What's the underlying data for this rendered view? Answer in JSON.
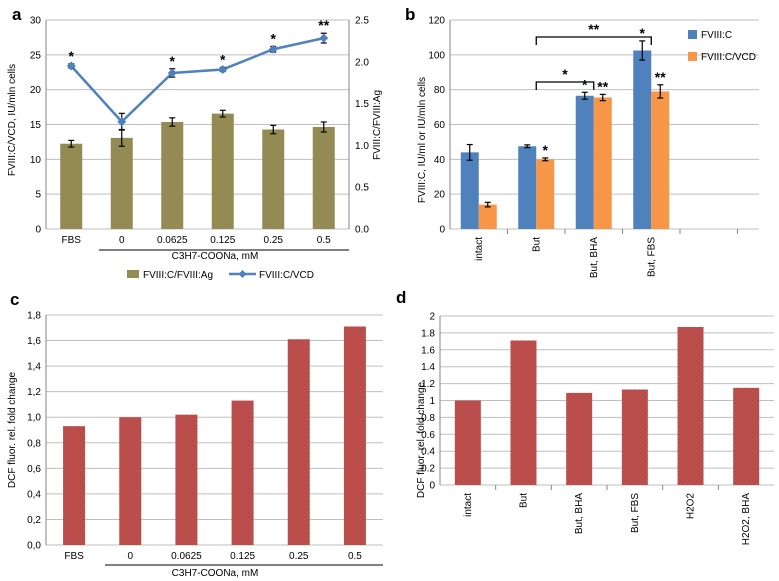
{
  "chart_data": [
    {
      "id": "a",
      "type": "bar+line",
      "panel_label": "a",
      "categories": [
        "FBS",
        "0",
        "0.0625",
        "0.125",
        "0.25",
        "0.5"
      ],
      "group_label": "C3H7-COONa, mM",
      "ylabel_left": "FVIII:C/VCD, IU/mln cells",
      "ylabel_right": "FVIII:C/FVIII:Ag",
      "ylim_left": [
        0,
        30
      ],
      "yticks_left": [
        "0",
        "5",
        "10",
        "15",
        "20",
        "25",
        "30"
      ],
      "ylim_right": [
        0,
        2.5
      ],
      "yticks_right": [
        "0.0",
        "0.5",
        "1.0",
        "1.5",
        "2.0",
        "2.5"
      ],
      "series": [
        {
          "name": "FVIII:C/FVIII:Ag",
          "kind": "bar",
          "axis": "right",
          "color": "#948a54",
          "values": [
            1.02,
            1.09,
            1.28,
            1.38,
            1.19,
            1.22
          ],
          "errors": [
            0.04,
            0.1,
            0.05,
            0.04,
            0.05,
            0.06
          ]
        },
        {
          "name": "FVIII:C/VCD",
          "kind": "line",
          "axis": "left",
          "color": "#4f81bd",
          "values": [
            23.4,
            15.4,
            22.4,
            22.9,
            25.8,
            27.4
          ],
          "errors": [
            0.3,
            1.2,
            0.6,
            0.3,
            0.4,
            0.7
          ],
          "annotations": [
            "*",
            "",
            "*",
            "*",
            "*",
            "**"
          ]
        }
      ]
    },
    {
      "id": "b",
      "type": "bar",
      "panel_label": "b",
      "categories": [
        "intact",
        "But",
        "But, BHA",
        "But, FBS"
      ],
      "ylabel": "FVIII:C, IU/ml or IU/mln cells",
      "ylim": [
        0,
        120
      ],
      "yticks": [
        "0",
        "20",
        "40",
        "60",
        "80",
        "100",
        "120"
      ],
      "series": [
        {
          "name": "FVIII:C",
          "color": "#4f81bd",
          "values": [
            44,
            47.5,
            76.5,
            102.5
          ],
          "errors": [
            4.5,
            0.8,
            2,
            5.5
          ],
          "annotations": [
            "",
            "",
            "*",
            "*"
          ]
        },
        {
          "name": "FVIII:C/VCD",
          "color": "#f79646",
          "values": [
            14,
            40,
            75.5,
            79
          ],
          "errors": [
            1.3,
            0.8,
            1.8,
            3.8
          ],
          "annotations": [
            "",
            "*",
            "**",
            "**"
          ]
        }
      ],
      "brackets": [
        {
          "from": "But",
          "to": "But, BHA",
          "text": "*"
        },
        {
          "from": "But",
          "to": "But, FBS",
          "text": "**"
        }
      ]
    },
    {
      "id": "c",
      "type": "bar",
      "panel_label": "c",
      "categories": [
        "FBS",
        "0",
        "0.0625",
        "0.125",
        "0.25",
        "0.5"
      ],
      "group_label": "C3H7-COONa, mM",
      "ylabel": "DCF fluor. rel. fold change",
      "ylim": [
        0,
        1.8
      ],
      "yticks": [
        "0,0",
        "0,2",
        "0,4",
        "0,6",
        "0,8",
        "1,0",
        "1,2",
        "1,4",
        "1,6",
        "1,8"
      ],
      "series": [
        {
          "name": "DCF fluorescence",
          "color": "#c0504d",
          "values": [
            0.93,
            1.0,
            1.02,
            1.13,
            1.61,
            1.71
          ]
        }
      ]
    },
    {
      "id": "d",
      "type": "bar",
      "panel_label": "d",
      "categories": [
        "intact",
        "But",
        "But, BHA",
        "But, FBS",
        "H2O2",
        "H2O2, BHA"
      ],
      "ylabel": "DCF fluor. rel. fold change",
      "ylim": [
        0,
        2
      ],
      "yticks": [
        "0",
        "0.2",
        "0.4",
        "0.6",
        "0.8",
        "1",
        "1.2",
        "1.4",
        "1.6",
        "1.8",
        "2"
      ],
      "series": [
        {
          "name": "DCF fluorescence",
          "color": "#c0504d",
          "values": [
            1.0,
            1.71,
            1.09,
            1.13,
            1.87,
            1.15
          ]
        }
      ]
    }
  ]
}
